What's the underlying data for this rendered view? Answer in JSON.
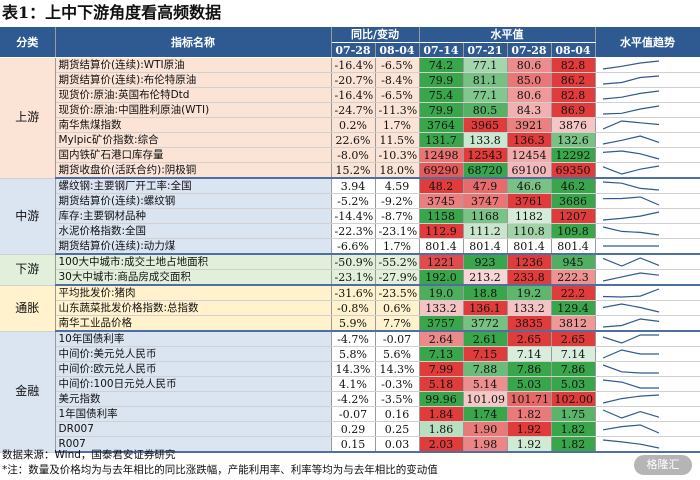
{
  "title": "表1：上中下游角度看高频数据",
  "headers": {
    "category": "分类",
    "indicator": "指标名称",
    "yoy": "同比/变动",
    "level": "水平值",
    "trend": "水平值趋势",
    "yoy_dates": [
      "07-28",
      "08-04"
    ],
    "level_dates": [
      "07-14",
      "07-21",
      "07-28",
      "08-04"
    ]
  },
  "sections": [
    {
      "name": "上游",
      "rows": [
        {
          "name": "期货结算价(连续):WTI原油",
          "yoy": [
            "-16.4%",
            "-6.5%"
          ],
          "levels": [
            "74.2",
            "77.1",
            "80.6",
            "82.8"
          ],
          "vals": [
            74.2,
            77.1,
            80.6,
            82.8
          ]
        },
        {
          "name": "期货结算价(连续):布伦特原油",
          "yoy": [
            "-20.7%",
            "-8.4%"
          ],
          "levels": [
            "79.9",
            "81.1",
            "85.0",
            "86.2"
          ],
          "vals": [
            79.9,
            81.1,
            85.0,
            86.2
          ]
        },
        {
          "name": "现货价:原油:英国布伦特Dtd",
          "yoy": [
            "-16.4%",
            "-6.5%"
          ],
          "levels": [
            "75.4",
            "77.1",
            "80.6",
            "82.8"
          ],
          "vals": [
            75.4,
            77.1,
            80.6,
            82.8
          ]
        },
        {
          "name": "现货价:原油:中国胜利原油(WTI)",
          "yoy": [
            "-24.7%",
            "-11.3%"
          ],
          "levels": [
            "79.9",
            "80.5",
            "84.3",
            "86.9"
          ],
          "vals": [
            79.9,
            80.5,
            84.3,
            86.9
          ]
        },
        {
          "name": "南华焦煤指数",
          "yoy": [
            "0.2%",
            "1.7%"
          ],
          "levels": [
            "3764",
            "3965",
            "3921",
            "3876"
          ],
          "vals": [
            3764,
            3965,
            3921,
            3876
          ]
        },
        {
          "name": "Mylpic矿价指数:综合",
          "yoy": [
            "22.6%",
            "11.5%"
          ],
          "levels": [
            "131.7",
            "133.8",
            "136.3",
            "132.6"
          ],
          "vals": [
            131.7,
            133.8,
            136.3,
            132.6
          ]
        },
        {
          "name": "国内铁矿石港口库存量",
          "yoy": [
            "-8.0%",
            "-10.3%"
          ],
          "levels": [
            "12498",
            "12543",
            "12454",
            "12292"
          ],
          "vals": [
            12498,
            12543,
            12454,
            12292
          ]
        },
        {
          "name": "期货收盘价(活跃合约):阴极铜",
          "yoy": [
            "15.2%",
            "18.0%"
          ],
          "levels": [
            "69290",
            "68720",
            "69100",
            "69350"
          ],
          "vals": [
            69290,
            68720,
            69100,
            69350
          ]
        }
      ]
    },
    {
      "name": "中游",
      "rows": [
        {
          "name": "螺纹钢:主要钢厂开工率:全国",
          "yoy": [
            "3.94",
            "4.59"
          ],
          "levels": [
            "48.2",
            "47.9",
            "46.6",
            "46.2"
          ],
          "vals": [
            48.2,
            47.9,
            46.6,
            46.2
          ]
        },
        {
          "name": "期货结算价(连续):螺纹钢",
          "yoy": [
            "-5.2%",
            "-9.2%"
          ],
          "levels": [
            "3745",
            "3747",
            "3761",
            "3686"
          ],
          "vals": [
            3745,
            3747,
            3761,
            3686
          ]
        },
        {
          "name": "库存:主要钢材品种",
          "yoy": [
            "-14.4%",
            "-8.7%"
          ],
          "levels": [
            "1158",
            "1168",
            "1182",
            "1207"
          ],
          "vals": [
            1158,
            1168,
            1182,
            1207
          ]
        },
        {
          "name": "水泥价格指数:全国",
          "yoy": [
            "-22.3%",
            "-23.1%"
          ],
          "levels": [
            "112.9",
            "111.2",
            "110.8",
            "109.8"
          ],
          "vals": [
            112.9,
            111.2,
            110.8,
            109.8
          ]
        },
        {
          "name": "期货结算价(连续):动力煤",
          "yoy": [
            "-6.6%",
            "1.7%"
          ],
          "levels": [
            "801.4",
            "801.4",
            "801.4",
            "801.4"
          ],
          "vals": [
            801.4,
            801.4,
            801.4,
            801.4
          ]
        }
      ]
    },
    {
      "name": "下游",
      "rows": [
        {
          "name": "100大中城市:成交土地占地面积",
          "yoy": [
            "-50.9%",
            "-55.2%"
          ],
          "levels": [
            "1221",
            "923",
            "1236",
            "945"
          ],
          "vals": [
            1221,
            923,
            1236,
            945
          ]
        },
        {
          "name": "30大中城市:商品房成交面积",
          "yoy": [
            "-23.1%",
            "-27.9%"
          ],
          "levels": [
            "192.0",
            "213.2",
            "233.8",
            "222.3"
          ],
          "vals": [
            192.0,
            213.2,
            233.8,
            222.3
          ]
        }
      ]
    },
    {
      "name": "通胀",
      "rows": [
        {
          "name": "平均批发价:猪肉",
          "yoy": [
            "-31.6%",
            "-23.5%"
          ],
          "levels": [
            "19.0",
            "18.8",
            "19.2",
            "22.2"
          ],
          "vals": [
            19.0,
            18.8,
            19.2,
            22.2
          ]
        },
        {
          "name": "山东蔬菜批发价格指数:总指数",
          "yoy": [
            "-0.8%",
            "0.6%"
          ],
          "levels": [
            "133.2",
            "136.1",
            "133.2",
            "129.4"
          ],
          "vals": [
            133.2,
            136.1,
            133.2,
            129.4
          ]
        },
        {
          "name": "南华工业品价格",
          "yoy": [
            "5.9%",
            "7.7%"
          ],
          "levels": [
            "3757",
            "3772",
            "3835",
            "3812"
          ],
          "vals": [
            3757,
            3772,
            3835,
            3812
          ]
        }
      ]
    },
    {
      "name": "金融",
      "rows": [
        {
          "name": "10年国债利率",
          "yoy": [
            "-4.7%",
            "-0.07"
          ],
          "levels": [
            "2.64",
            "2.61",
            "2.65",
            "2.65"
          ],
          "vals": [
            2.64,
            2.61,
            2.65,
            2.65
          ]
        },
        {
          "name": "中间价:美元兑人民币",
          "yoy": [
            "5.8%",
            "5.6%"
          ],
          "levels": [
            "7.13",
            "7.15",
            "7.14",
            "7.14"
          ],
          "vals": [
            7.13,
            7.15,
            7.14,
            7.14
          ]
        },
        {
          "name": "中间价:欧元兑人民币",
          "yoy": [
            "14.3%",
            "14.3%"
          ],
          "levels": [
            "7.99",
            "7.88",
            "7.86",
            "7.86"
          ],
          "vals": [
            7.99,
            7.88,
            7.86,
            7.86
          ]
        },
        {
          "name": "中间价:100日元兑人民币",
          "yoy": [
            "4.1%",
            "-0.3%"
          ],
          "levels": [
            "5.18",
            "5.14",
            "5.03",
            "5.03"
          ],
          "vals": [
            5.18,
            5.14,
            5.03,
            5.03
          ]
        },
        {
          "name": "美元指数",
          "yoy": [
            "-4.2%",
            "-3.5%"
          ],
          "levels": [
            "99.96",
            "101.09",
            "101.71",
            "102.00"
          ],
          "vals": [
            99.96,
            101.09,
            101.71,
            102.0
          ]
        },
        {
          "name": "1年国债利率",
          "yoy": [
            "-0.07",
            "0.16"
          ],
          "levels": [
            "1.84",
            "1.74",
            "1.82",
            "1.75"
          ],
          "vals": [
            1.84,
            1.74,
            1.82,
            1.75
          ]
        },
        {
          "name": "DR007",
          "yoy": [
            "0.29",
            "0.25"
          ],
          "levels": [
            "1.86",
            "1.90",
            "1.92",
            "1.82"
          ],
          "vals": [
            1.86,
            1.9,
            1.92,
            1.82
          ]
        },
        {
          "name": "R007",
          "yoy": [
            "0.15",
            "0.03"
          ],
          "levels": [
            "2.03",
            "1.98",
            "1.92",
            "1.82"
          ],
          "vals": [
            2.03,
            1.98,
            1.92,
            1.82
          ]
        }
      ]
    }
  ],
  "footnote_source": "数据来源：Wind，国泰君安证券研究",
  "footnote_note": "*注：数量及价格均为与去年相比的同比涨跌幅，产能利用率、利率等均为与去年相比的变动值",
  "watermark": "格隆汇",
  "colors": {
    "header": "#2e5a91",
    "section_bg": [
      "#fbe3d6",
      "#dbe5f2",
      "#e2efda",
      "#fff2cc",
      "#dbe5f2"
    ],
    "yoy_bg": [
      "#fbe3d6",
      "#ffffff",
      "#e2efda",
      "#fff2cc",
      "#ffffff"
    ],
    "high": "#e03c3c",
    "low": "#3aa64c",
    "sparkline": "#2e5a91"
  }
}
